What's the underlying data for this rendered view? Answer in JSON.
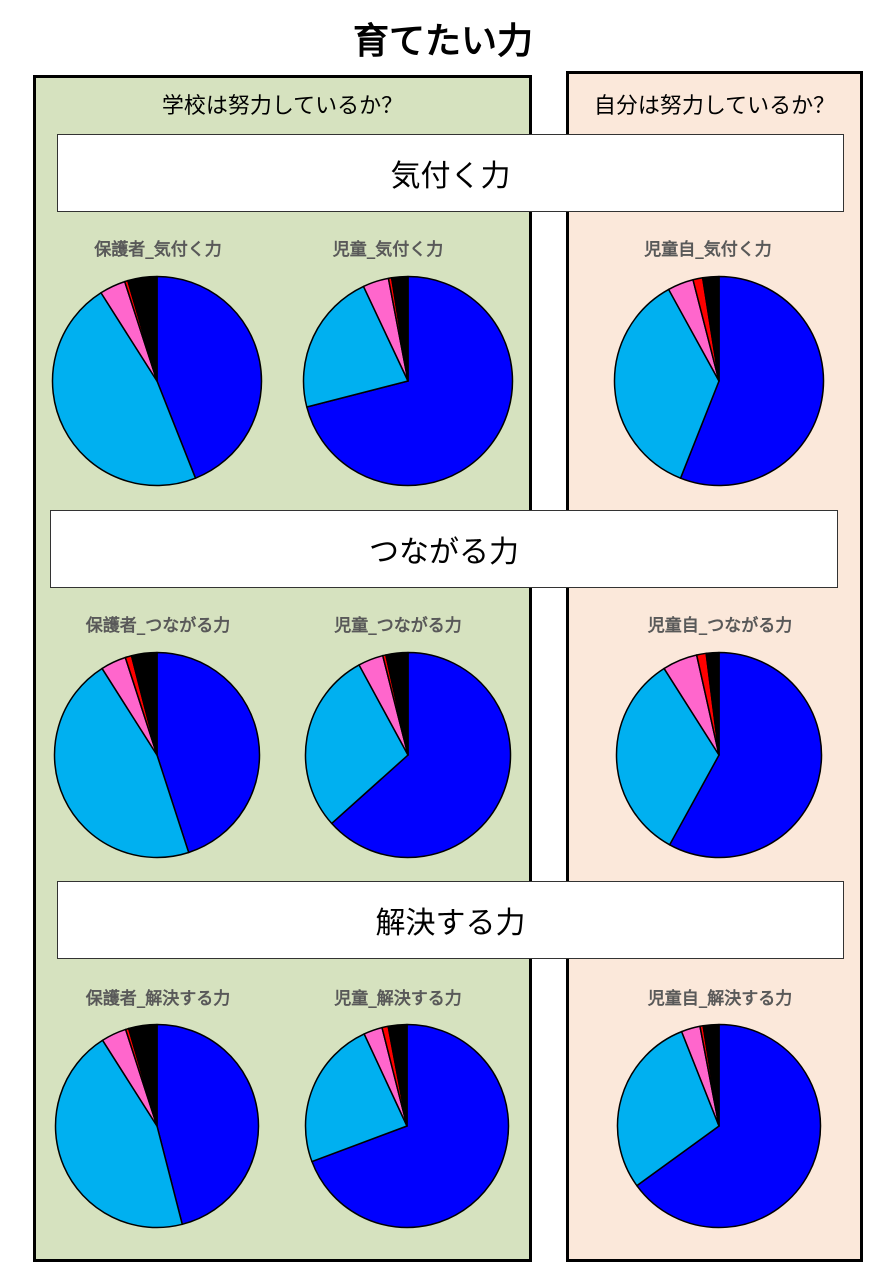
{
  "page": {
    "title": "育てたい力",
    "left_heading": "学校は努力しているか？",
    "right_heading": "自分は努力しているか？"
  },
  "sections": [
    "気付く力",
    "つながる力",
    "解決する力"
  ],
  "colors": {
    "panel_left": "#d6e2bf",
    "panel_right": "#fbe8da",
    "series": [
      "#0000ff",
      "#00b0f0",
      "#ff66cc",
      "#ff0000",
      "#000000"
    ]
  },
  "chart_data": [
    {
      "type": "pie",
      "title": "保護者_気付く力",
      "values": [
        44,
        47,
        4,
        0.5,
        4.5
      ]
    },
    {
      "type": "pie",
      "title": "児童_気付く力",
      "values": [
        71,
        22,
        4,
        0.5,
        2.5
      ]
    },
    {
      "type": "pie",
      "title": "児童自_気付く力",
      "values": [
        56,
        36,
        4,
        1.5,
        2.5
      ]
    },
    {
      "type": "pie",
      "title": "保護者_つながる力",
      "values": [
        45,
        46,
        4,
        1,
        4
      ]
    },
    {
      "type": "pie",
      "title": "児童_つながる力",
      "values": [
        64,
        29,
        4,
        0.5,
        3.5
      ]
    },
    {
      "type": "pie",
      "title": "児童自_つながる力",
      "values": [
        58,
        33,
        5.5,
        1.5,
        2
      ]
    },
    {
      "type": "pie",
      "title": "保護者_解決する力",
      "values": [
        46,
        45,
        4,
        0.5,
        4.5
      ]
    },
    {
      "type": "pie",
      "title": "児童_解決する力",
      "values": [
        70,
        24,
        3,
        1,
        3
      ]
    },
    {
      "type": "pie",
      "title": "児童自_解決する力",
      "values": [
        65,
        29,
        3,
        0.5,
        2.5
      ]
    }
  ]
}
